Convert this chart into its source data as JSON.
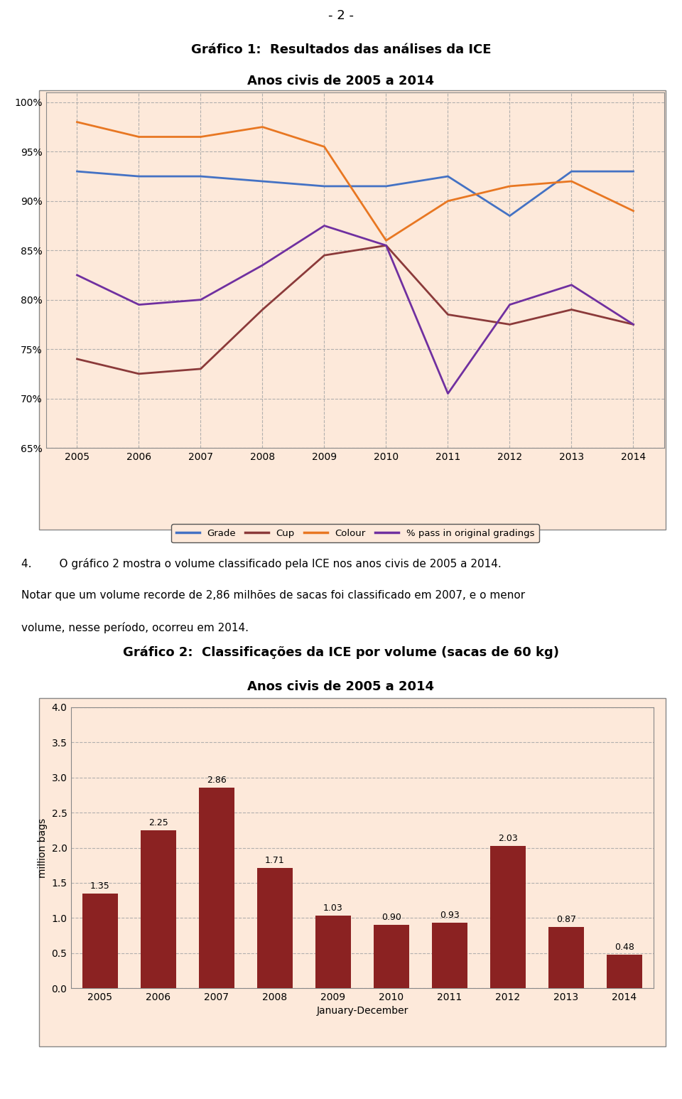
{
  "page_header": "- 2 -",
  "chart1": {
    "title_line1": "Gráfico 1:  Resultados das análises da ICE",
    "title_line2": "Anos civis de 2005 a 2014",
    "years": [
      2005,
      2006,
      2007,
      2008,
      2009,
      2010,
      2011,
      2012,
      2013,
      2014
    ],
    "grade": [
      93.0,
      92.5,
      92.5,
      92.0,
      91.5,
      91.5,
      92.5,
      88.5,
      93.0,
      93.0
    ],
    "cup": [
      74.0,
      72.5,
      73.0,
      79.0,
      84.5,
      85.5,
      78.5,
      77.5,
      79.0,
      77.5
    ],
    "colour": [
      98.0,
      96.5,
      96.5,
      97.5,
      95.5,
      86.0,
      90.0,
      91.5,
      92.0,
      89.0
    ],
    "pass": [
      82.5,
      79.5,
      80.0,
      83.5,
      87.5,
      85.5,
      70.5,
      79.5,
      81.5,
      77.5
    ],
    "ylim": [
      65,
      101
    ],
    "yticks": [
      65,
      70,
      75,
      80,
      85,
      90,
      95,
      100
    ],
    "colors": {
      "grade": "#4472C4",
      "cup": "#8B3A3A",
      "colour": "#E87722",
      "pass": "#7030A0"
    },
    "bg_color": "#FDE9DA",
    "grid_color": "#AAAAAA",
    "legend_labels": [
      "Grade",
      "Cup",
      "Colour",
      "% pass in original gradings"
    ]
  },
  "text_para": {
    "para4": "4.        O gráfico 2 mostra o volume classificado pela ICE nos anos civis de 2005 a 2014.",
    "line2": "Notar que um volume recorde de 2,86 milhões de sacas foi classificado em 2007, e o menor",
    "line3": "volume, nesse período, ocorreu em 2014."
  },
  "chart2": {
    "title_line1": "Gráfico 2:  Classificações da ICE por volume (sacas de 60 kg)",
    "title_line2": "Anos civis de 2005 a 2014",
    "years": [
      2005,
      2006,
      2007,
      2008,
      2009,
      2010,
      2011,
      2012,
      2013,
      2014
    ],
    "values": [
      1.35,
      2.25,
      2.86,
      1.71,
      1.03,
      0.9,
      0.93,
      2.03,
      0.87,
      0.48
    ],
    "bar_color": "#8B2222",
    "ylim": [
      0.0,
      4.0
    ],
    "yticks": [
      0.0,
      0.5,
      1.0,
      1.5,
      2.0,
      2.5,
      3.0,
      3.5,
      4.0
    ],
    "ylabel": "million bags",
    "xlabel": "January-December",
    "bg_color": "#FDE9DA",
    "grid_color": "#AAAAAA"
  },
  "fig_width": 9.6,
  "fig_height": 15.46,
  "dpi": 100
}
